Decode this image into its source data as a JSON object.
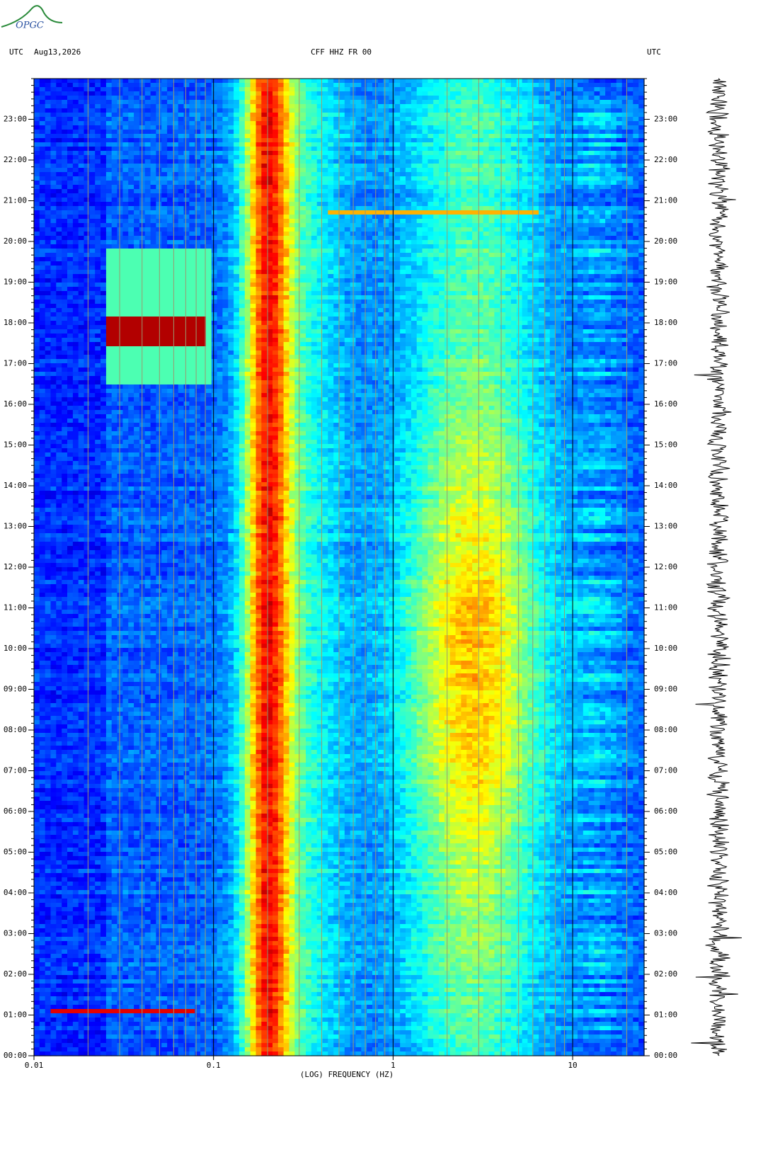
{
  "logo": "OPGC",
  "chart_data": {
    "type": "spectrogram",
    "header_left": "UTC",
    "date": "Aug13,2026",
    "title": "CFF HHZ FR 00",
    "header_right": "UTC",
    "xlabel": "(LOG) FREQUENCY (HZ)",
    "xscale": "log",
    "xlim": [
      0.01,
      25
    ],
    "xticks": [
      0.01,
      0.1,
      1,
      10
    ],
    "ylim": [
      0,
      24
    ],
    "yticks": [
      {
        "value": 0,
        "label": "00:00"
      },
      {
        "value": 1,
        "label": "01:00"
      },
      {
        "value": 2,
        "label": "02:00"
      },
      {
        "value": 3,
        "label": "03:00"
      },
      {
        "value": 4,
        "label": "04:00"
      },
      {
        "value": 5,
        "label": "05:00"
      },
      {
        "value": 6,
        "label": "06:00"
      },
      {
        "value": 7,
        "label": "07:00"
      },
      {
        "value": 8,
        "label": "08:00"
      },
      {
        "value": 9,
        "label": "09:00"
      },
      {
        "value": 10,
        "label": "10:00"
      },
      {
        "value": 11,
        "label": "11:00"
      },
      {
        "value": 12,
        "label": "12:00"
      },
      {
        "value": 13,
        "label": "13:00"
      },
      {
        "value": 14,
        "label": "14:00"
      },
      {
        "value": 15,
        "label": "15:00"
      },
      {
        "value": 16,
        "label": "16:00"
      },
      {
        "value": 17,
        "label": "17:00"
      },
      {
        "value": 18,
        "label": "18:00"
      },
      {
        "value": 19,
        "label": "19:00"
      },
      {
        "value": 20,
        "label": "20:00"
      },
      {
        "value": 21,
        "label": "21:00"
      },
      {
        "value": 22,
        "label": "22:00"
      },
      {
        "value": 23,
        "label": "23:00"
      }
    ],
    "grid": true
  }
}
